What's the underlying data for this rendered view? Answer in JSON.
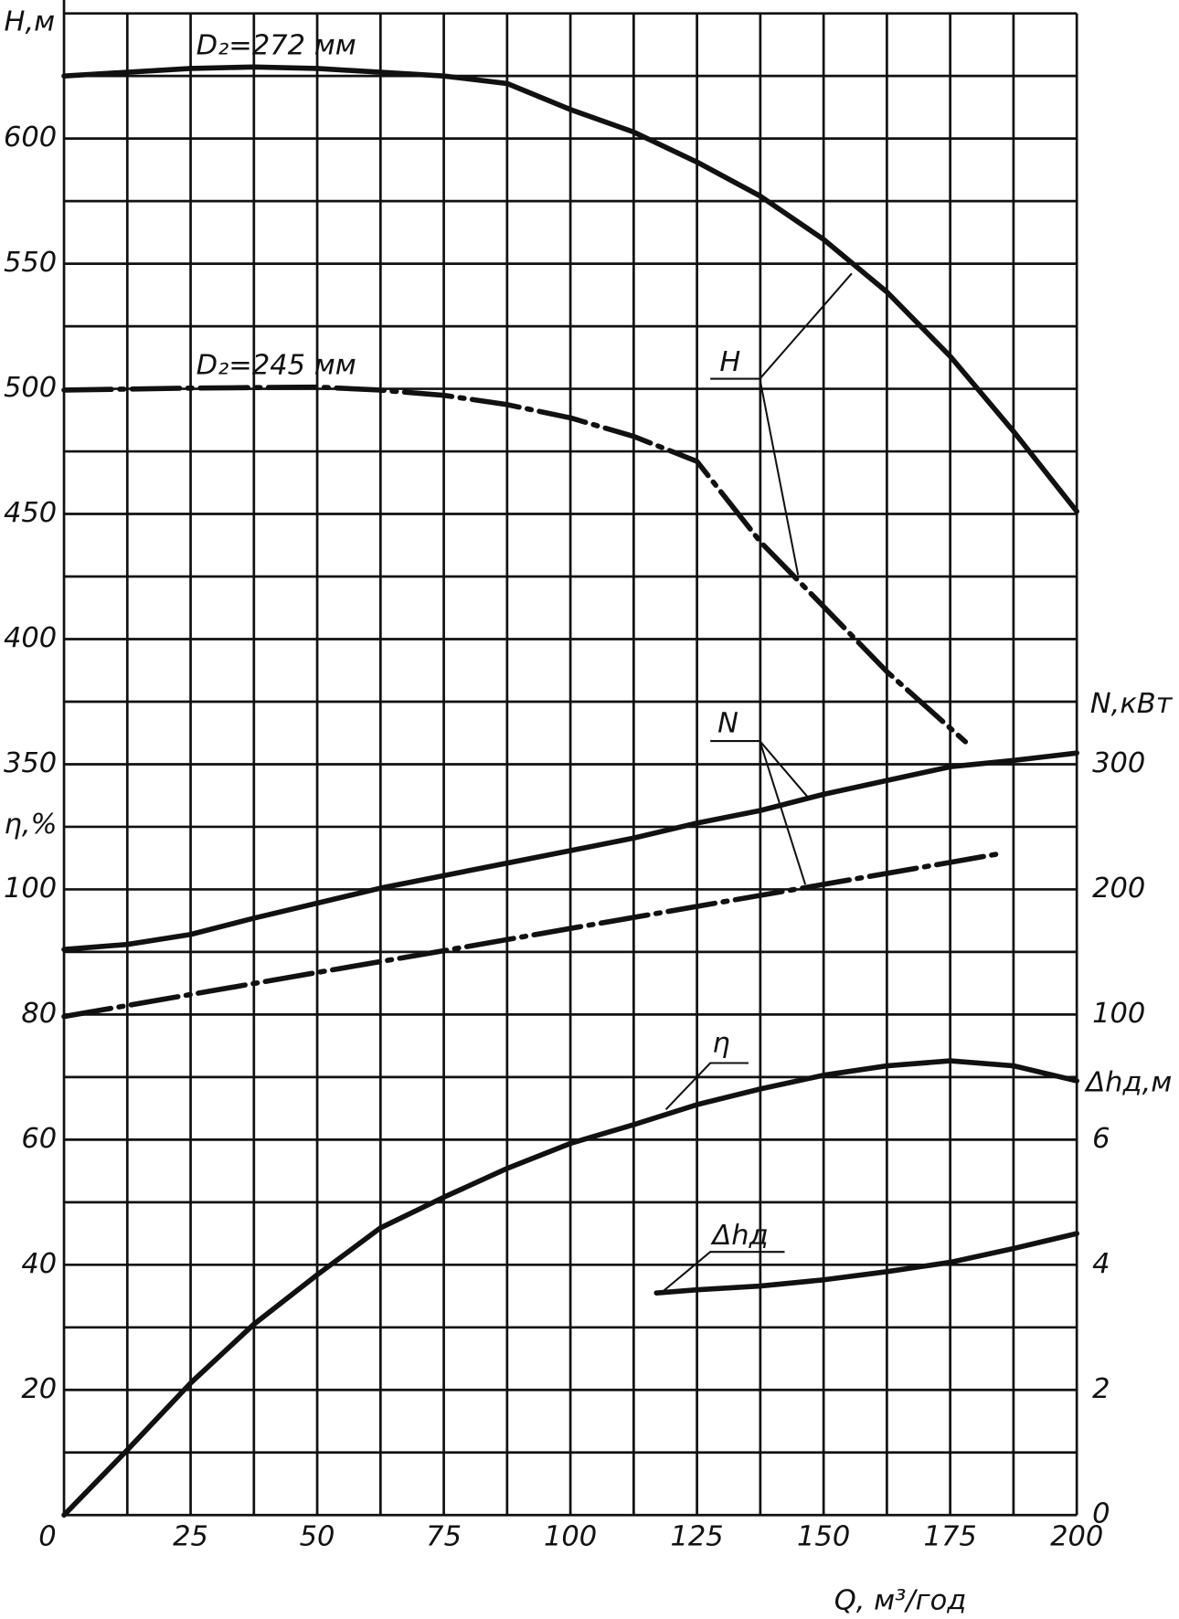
{
  "chart_data": {
    "type": "line",
    "x_label": "Q, м³/год",
    "y_label": "H,м",
    "y2_label": "N,кВт",
    "y3_label": "η,%",
    "y4_label": "Δhд,м",
    "xlim": [
      0,
      200
    ],
    "xticks": [
      0,
      25,
      50,
      75,
      100,
      125,
      150,
      175,
      200
    ],
    "ylim": [
      50,
      650
    ],
    "yticks": [
      350,
      400,
      450,
      500,
      550,
      600
    ],
    "y2lim": [
      -300,
      900
    ],
    "y2ticks": [
      100,
      200,
      300
    ],
    "y3lim": [
      0,
      240
    ],
    "y3ticks": [
      20,
      40,
      60,
      80,
      100
    ],
    "y4lim": [
      0,
      24
    ],
    "y4ticks": [
      0,
      2,
      4,
      6
    ],
    "grid": true,
    "grid_step_x": 12.5,
    "grid_step_y": 25,
    "annotations": [
      "D₂=272 мм",
      "D₂=245 мм",
      "H",
      "N",
      "η",
      "Δhд"
    ],
    "series": [
      {
        "axis": "y",
        "style": "solid",
        "color": "#111111",
        "x": [
          0,
          25,
          37.5,
          50,
          75,
          87.5,
          100,
          112.5,
          125,
          137.5,
          150,
          162.5,
          175,
          187.5,
          200
        ],
        "values": [
          625,
          628,
          628.6,
          628,
          625,
          622,
          611.6,
          602.6,
          590.6,
          577,
          559.7,
          538.7,
          513,
          483,
          451
        ]
      },
      {
        "axis": "y",
        "style": "dash-dot",
        "color": "#111111",
        "x": [
          0,
          25,
          50,
          62.5,
          75,
          87.5,
          100,
          112.5,
          125,
          137.5,
          150,
          162.5,
          178
        ],
        "values": [
          499.5,
          500.3,
          500.7,
          499.5,
          497.4,
          493.7,
          488.4,
          481,
          471,
          438.9,
          413,
          387,
          359
        ]
      },
      {
        "axis": "y2",
        "style": "solid",
        "color": "#111111",
        "x": [
          0,
          12.5,
          25,
          37.5,
          50,
          62.5,
          75,
          87.5,
          100,
          112.5,
          125,
          137.5,
          150,
          162.5,
          175,
          187.5,
          200
        ],
        "values": [
          152,
          156,
          164,
          177,
          189,
          201,
          211,
          221,
          231,
          241,
          253,
          263,
          276,
          287,
          298,
          303,
          309
        ]
      },
      {
        "axis": "y2",
        "style": "dash-dot",
        "color": "#111111",
        "x": [
          0,
          25,
          50,
          75,
          100,
          125,
          150,
          175,
          185
        ],
        "values": [
          98.4,
          116,
          133.6,
          151,
          168.8,
          186.4,
          204,
          221.6,
          228.7
        ]
      },
      {
        "axis": "y3",
        "style": "solid",
        "color": "#111111",
        "x": [
          0,
          12.5,
          25,
          37.5,
          50,
          62.5,
          75,
          87.5,
          100,
          112.5,
          125,
          137.5,
          150,
          162.5,
          175,
          187.5,
          200
        ],
        "values": [
          0,
          10.4,
          21.1,
          30.5,
          38.4,
          45.9,
          50.8,
          55.4,
          59.4,
          62.4,
          65.6,
          68.1,
          70.3,
          71.8,
          72.6,
          71.8,
          69.4
        ]
      },
      {
        "axis": "y4",
        "style": "solid",
        "color": "#111111",
        "x": [
          117,
          125,
          137.5,
          150,
          162.5,
          175,
          187.5,
          200
        ],
        "values": [
          3.55,
          3.6,
          3.66,
          3.76,
          3.89,
          4.04,
          4.26,
          4.5
        ]
      }
    ]
  }
}
